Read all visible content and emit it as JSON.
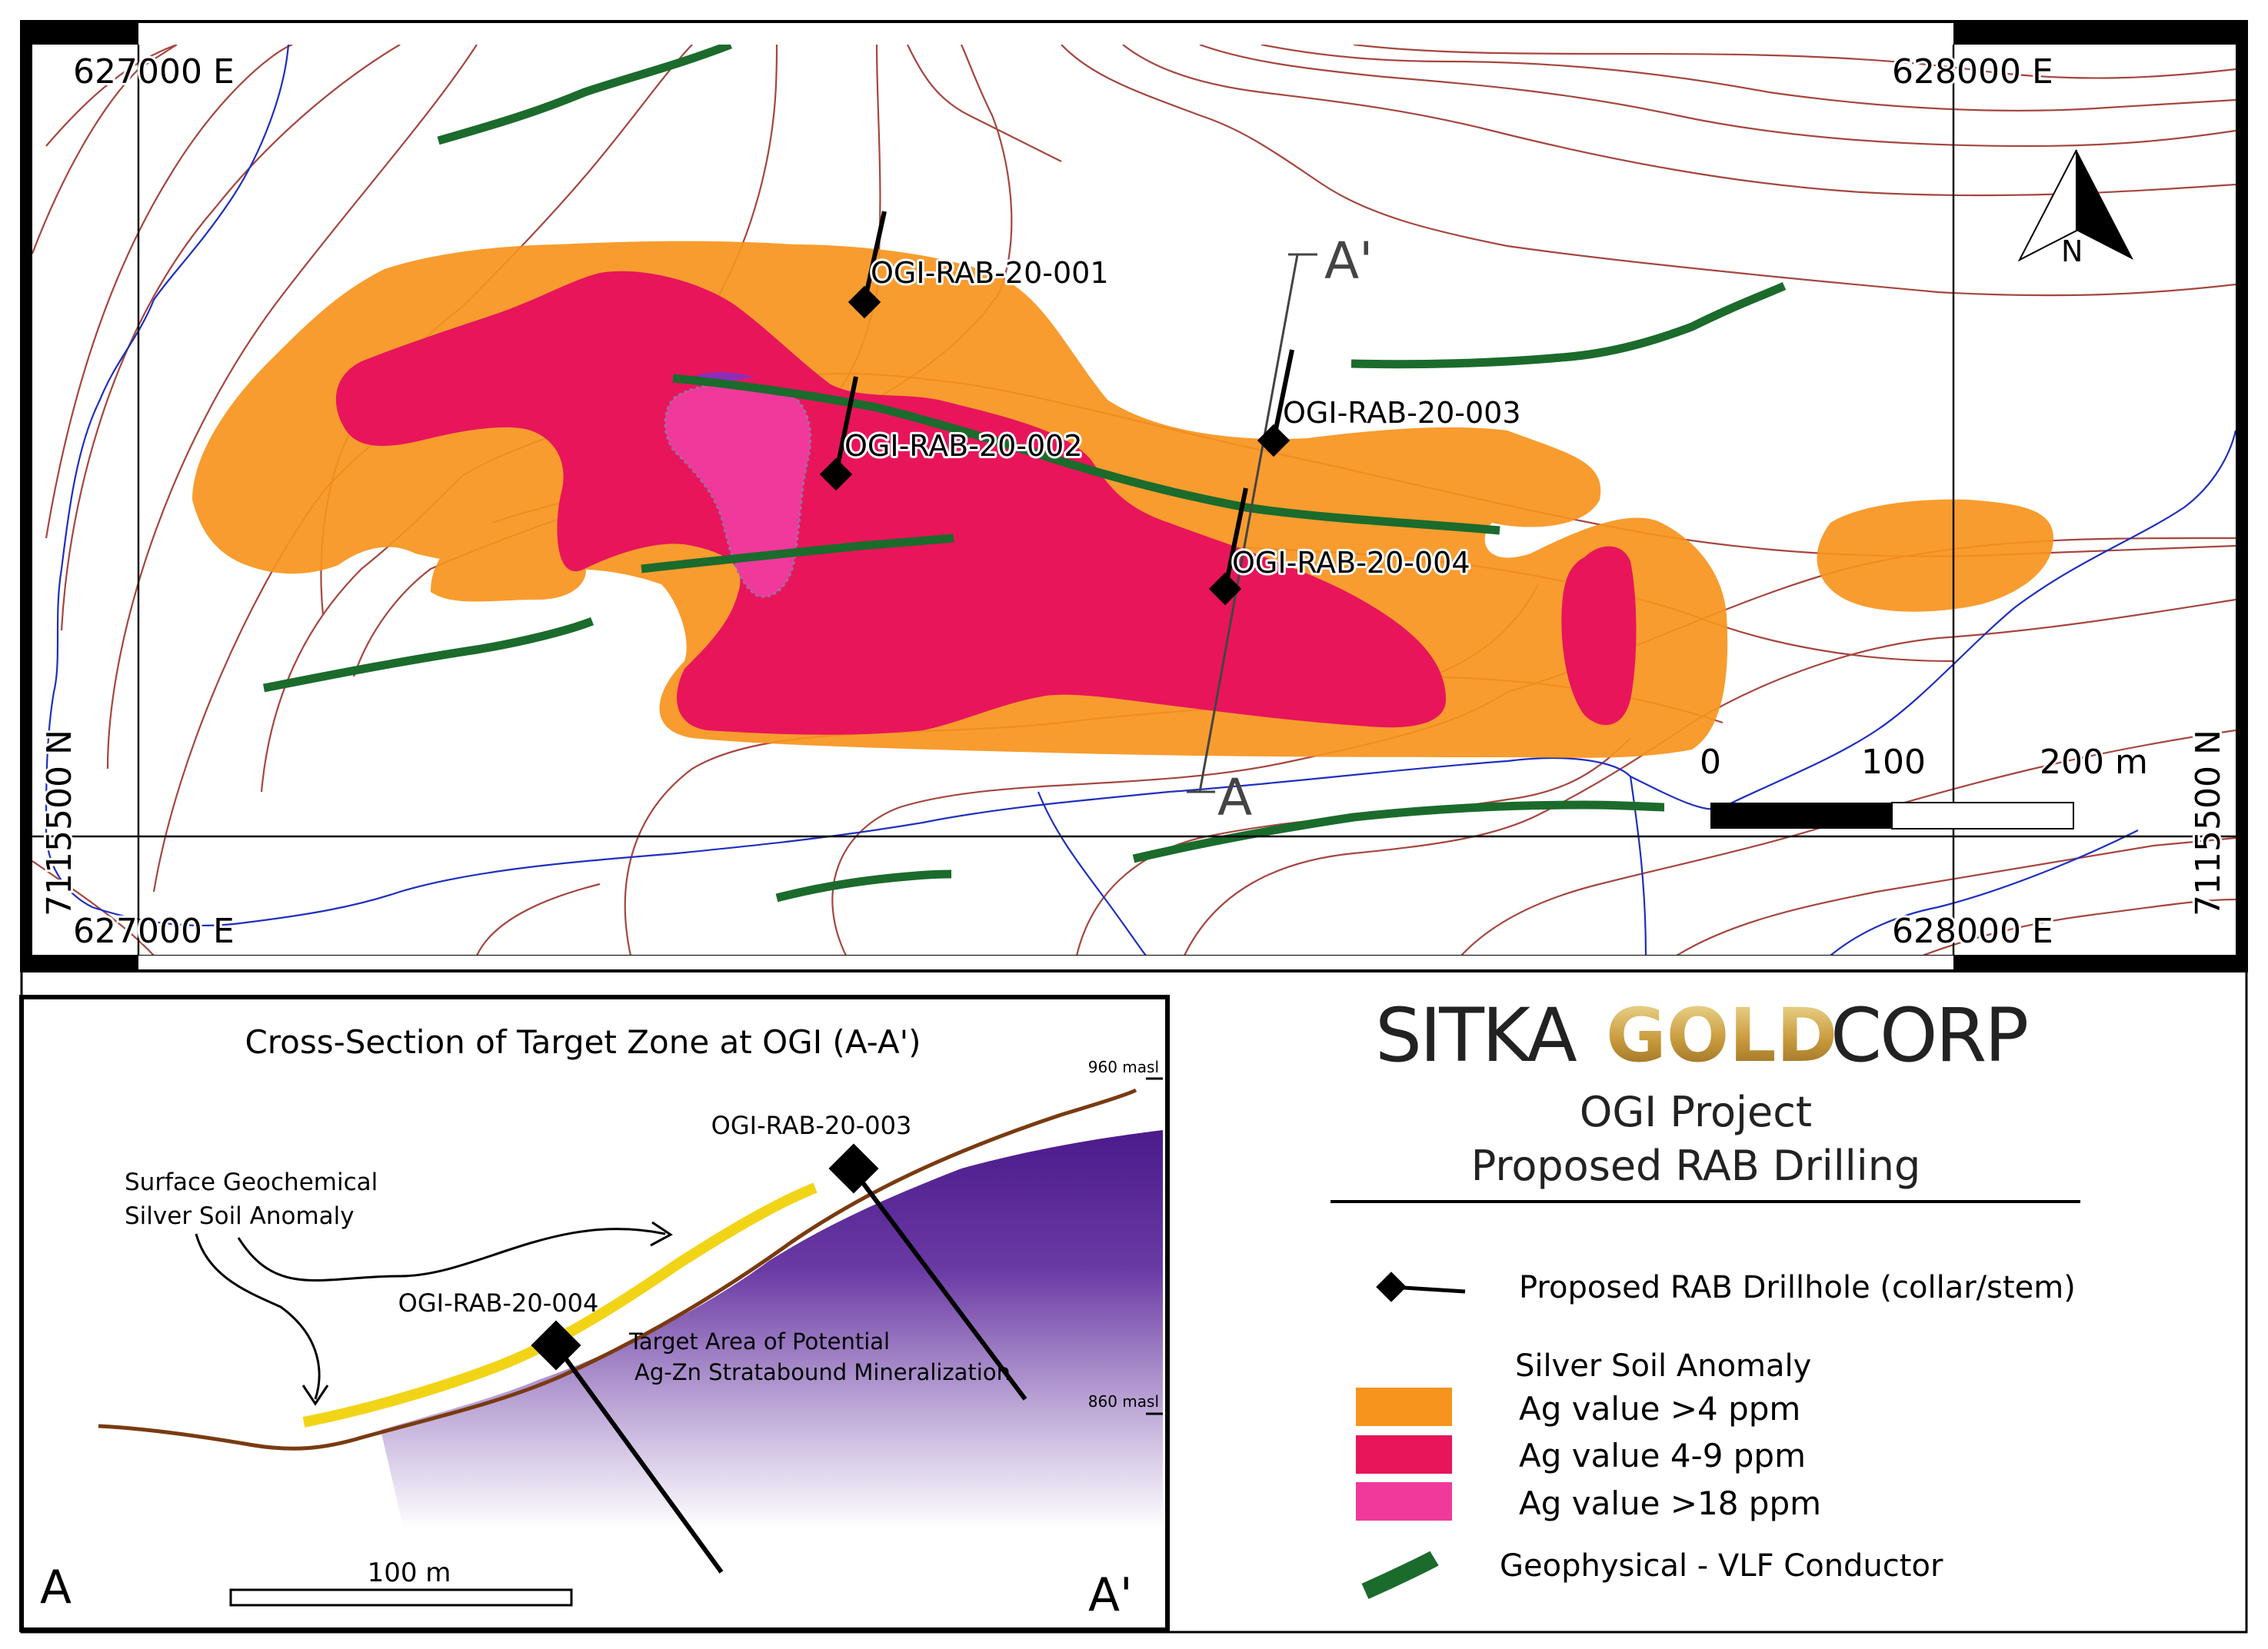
{
  "map": {
    "grid_labels": {
      "top_left_easting": "627000 E",
      "top_right_easting": "628000 E",
      "bottom_left_easting": "627000 E",
      "bottom_right_easting": "628000 E",
      "left_northing": "7115500 N",
      "right_northing": "7115500 N"
    },
    "north_arrow_label": "N",
    "section_line": {
      "start_label": "A",
      "end_label": "A'"
    },
    "drillholes": [
      {
        "id": "OGI-RAB-20-001"
      },
      {
        "id": "OGI-RAB-20-002"
      },
      {
        "id": "OGI-RAB-20-003"
      },
      {
        "id": "OGI-RAB-20-004"
      }
    ],
    "scale_bar": {
      "labels": [
        "0",
        "100",
        "200 m"
      ]
    }
  },
  "cross_section": {
    "title": "Cross-Section of Target Zone at OGI (A-A')",
    "elevation_top": "960 masl",
    "elevation_bottom": "860 masl",
    "hole_upper": "OGI-RAB-20-003",
    "hole_lower": "OGI-RAB-20-004",
    "anomaly_label_line1": "Surface Geochemical",
    "anomaly_label_line2": "Silver Soil Anomaly",
    "target_label_line1": "Target Area of Potential",
    "target_label_line2": "Ag-Zn Stratabound Mineralization",
    "scale_label": "100 m",
    "end_left": "A",
    "end_right": "A'"
  },
  "brand": {
    "company_part1": "SITKA",
    "company_part2": "GOLD",
    "company_part3": "CORP",
    "project": "OGI Project",
    "subtitle": "Proposed RAB Drilling"
  },
  "legend": {
    "drillhole": "Proposed RAB Drillhole (collar/stem)",
    "anomaly_heading": "Silver Soil Anomaly",
    "items": [
      {
        "label": "Ag value >4 ppm",
        "color": "#F7941D"
      },
      {
        "label": "Ag value 4-9 ppm",
        "color": "#E8155A"
      },
      {
        "label": "Ag value >18 ppm",
        "color": "#F0399B"
      }
    ],
    "conductor": "Geophysical - VLF Conductor",
    "conductor_color": "#1B6B2C"
  },
  "colors": {
    "contour": "#A5463F",
    "stream": "#1F2FBF",
    "purple": "#4B1A8C",
    "surface_line": "#7A3A10",
    "anomaly_yellow": "#F2D417"
  }
}
